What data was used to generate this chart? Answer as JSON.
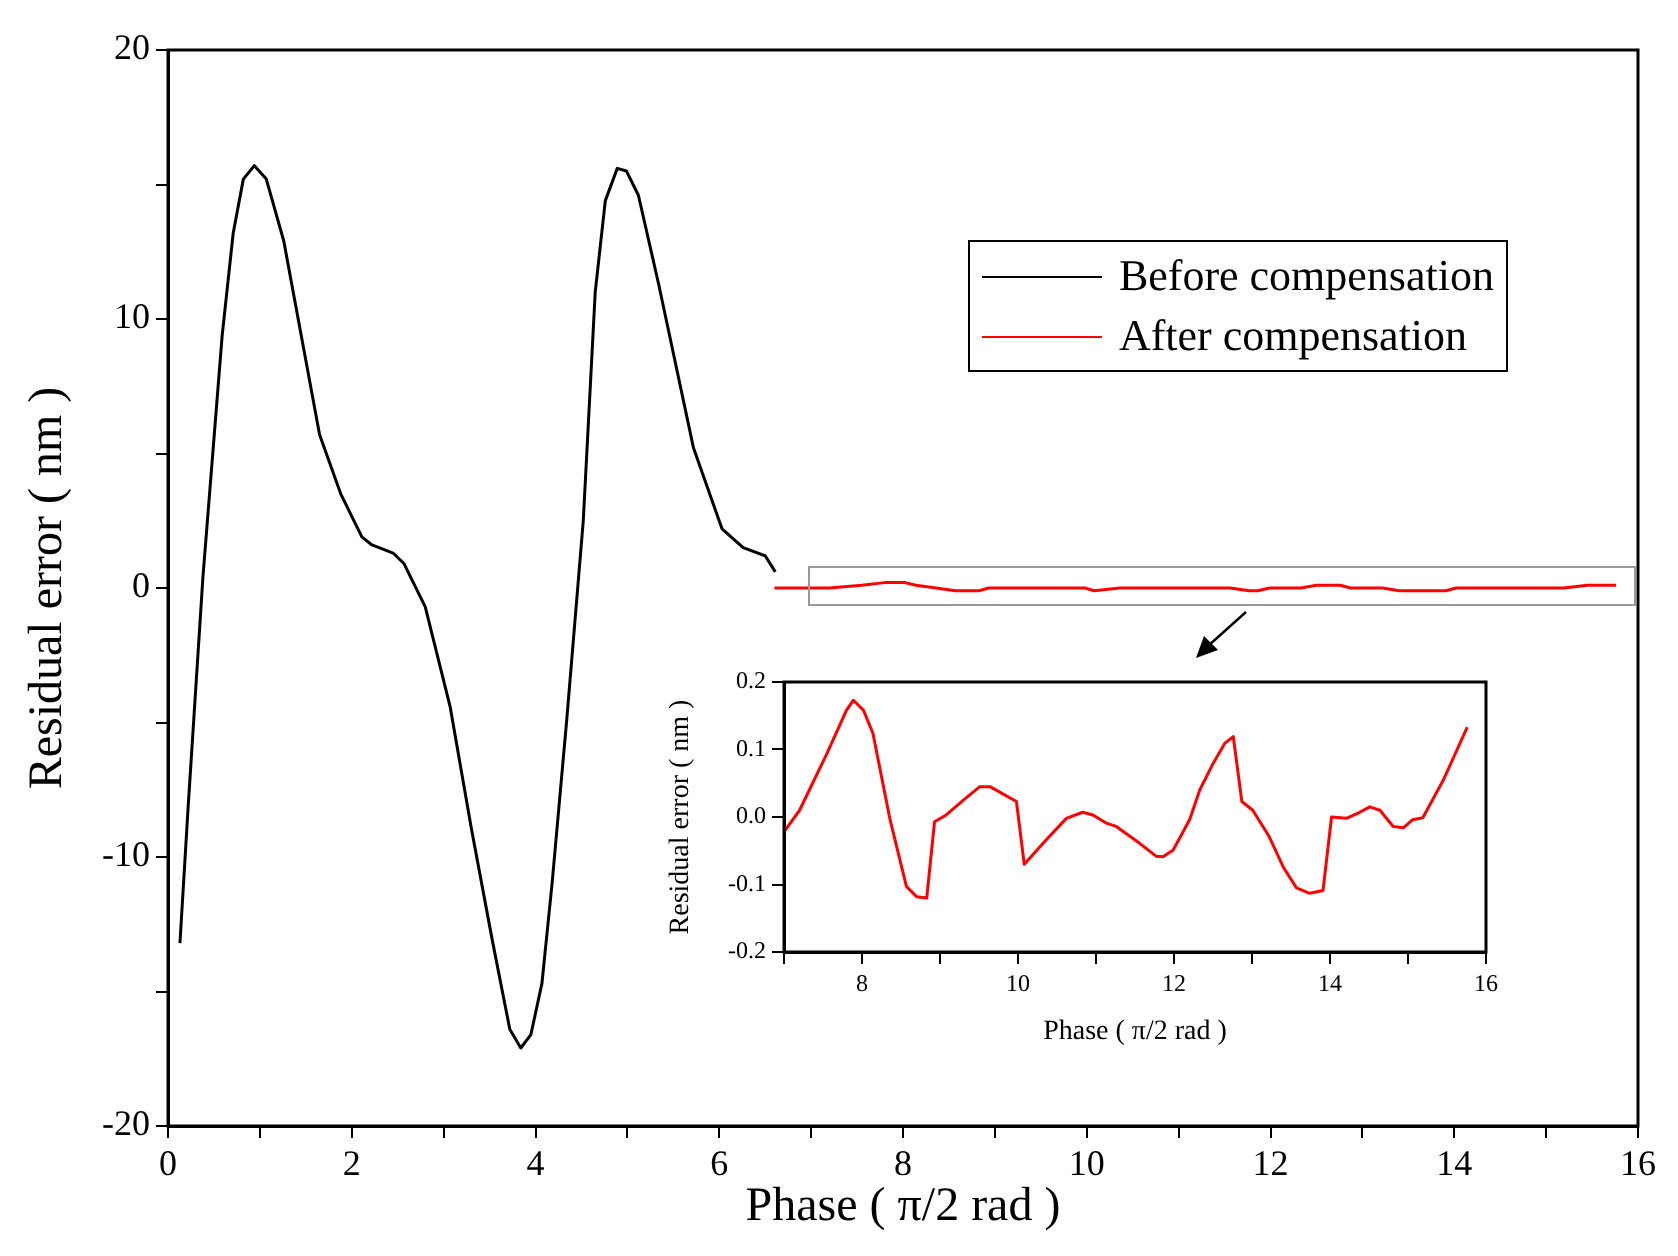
{
  "chart_data": [
    {
      "type": "line",
      "xlabel": "Phase ( π/2 rad )",
      "ylabel": "Residual error ( nm )",
      "xlim": [
        0,
        16
      ],
      "ylim": [
        -20,
        20
      ],
      "xticks": [
        0,
        {
          "value": 1,
          "label": null
        },
        2,
        {
          "value": 3,
          "label": null
        },
        4,
        {
          "value": 5,
          "label": null
        },
        6,
        {
          "value": 7,
          "label": null
        },
        8,
        {
          "value": 9,
          "label": null
        },
        10,
        {
          "value": 11,
          "label": null
        },
        12,
        {
          "value": 13,
          "label": null
        },
        14,
        {
          "value": 15,
          "label": null
        },
        16
      ],
      "yticks": [
        -20,
        {
          "value": -15,
          "label": null
        },
        -10,
        {
          "value": -5,
          "label": null
        },
        0,
        {
          "value": 5,
          "label": null
        },
        10,
        {
          "value": 15,
          "label": null
        },
        20
      ],
      "grid": false,
      "legend": "top right",
      "marker": "none",
      "line_style": "solid",
      "series": [
        {
          "name": "Before compensation",
          "color": "#000000",
          "x": [
            0.13,
            0.22,
            0.38,
            0.59,
            0.71,
            0.82,
            0.94,
            1.07,
            1.26,
            1.65,
            1.88,
            2.11,
            2.22,
            2.45,
            2.57,
            2.8,
            3.07,
            3.3,
            3.53,
            3.72,
            3.84,
            3.95,
            4.07,
            4.18,
            4.34,
            4.52,
            4.65,
            4.76,
            4.89,
            4.99,
            5.12,
            5.34,
            5.72,
            6.03,
            6.26,
            6.5,
            6.61
          ],
          "values": [
            -13.2,
            -8.1,
            0.4,
            9.4,
            13.2,
            15.2,
            15.7,
            15.2,
            12.9,
            5.7,
            3.5,
            1.9,
            1.6,
            1.3,
            0.9,
            -0.7,
            -4.4,
            -8.9,
            -13.1,
            -16.4,
            -17.1,
            -16.6,
            -14.7,
            -11,
            -4.9,
            2.5,
            11,
            14.4,
            15.6,
            15.5,
            14.6,
            11.3,
            5.2,
            2.2,
            1.5,
            1.2,
            0.6
          ]
        },
        {
          "name": "After compensation",
          "color": "#ff0000",
          "x": [
            6.6,
            7.0,
            7.2,
            7.55,
            7.8,
            7.89,
            8.02,
            8.14,
            8.36,
            8.57,
            8.7,
            8.83,
            8.93,
            9.08,
            9.3,
            9.51,
            9.64,
            9.98,
            10.08,
            10.36,
            10.62,
            10.83,
            10.96,
            11.13,
            11.26,
            11.56,
            11.77,
            11.86,
            11.99,
            12.2,
            12.33,
            12.5,
            12.65,
            12.76,
            12.87,
            13.01,
            13.22,
            13.4,
            13.57,
            13.74,
            13.91,
            14.02,
            14.21,
            14.38,
            14.51,
            14.64,
            14.81,
            14.94,
            15.06,
            15.19,
            15.45,
            15.76
          ],
          "values": [
            0,
            0,
            0,
            0.1,
            0.2,
            0.2,
            0.2,
            0.1,
            0,
            -0.1,
            -0.1,
            -0.1,
            0,
            0,
            0,
            0,
            0,
            0,
            -0.1,
            0,
            0,
            0,
            0,
            0,
            0,
            0,
            -0.1,
            -0.1,
            0,
            0,
            0,
            0.1,
            0.1,
            0.1,
            0,
            0,
            0,
            -0.1,
            -0.1,
            -0.1,
            -0.1,
            0,
            0,
            0,
            0,
            0,
            0,
            0,
            0,
            0,
            0.1,
            0.1
          ]
        }
      ]
    },
    {
      "type": "line",
      "xlabel": "Phase ( π/2 rad )",
      "ylabel": "Residual error ( nm )",
      "xlim": [
        7,
        16
      ],
      "ylim": [
        -0.2,
        0.2
      ],
      "xticks": [
        {
          "value": 7,
          "label": null
        },
        8,
        {
          "value": 9,
          "label": null
        },
        10,
        {
          "value": 11,
          "label": null
        },
        12,
        {
          "value": 13,
          "label": null
        },
        14,
        {
          "value": 15,
          "label": null
        },
        16
      ],
      "yticks": [
        -0.2,
        -0.1,
        {
          "value": 0,
          "label": "0.0"
        },
        0.1,
        0.2
      ],
      "grid": false,
      "legend": false,
      "marker": "none",
      "line_style": "solid",
      "series": [
        {
          "color": "#ff0000",
          "x": [
            7.0,
            7.2,
            7.55,
            7.8,
            7.89,
            8.02,
            8.14,
            8.36,
            8.57,
            8.7,
            8.83,
            8.93,
            9.08,
            9.3,
            9.51,
            9.64,
            9.98,
            10.08,
            10.36,
            10.62,
            10.83,
            10.96,
            11.13,
            11.26,
            11.56,
            11.77,
            11.86,
            11.99,
            12.2,
            12.33,
            12.5,
            12.65,
            12.76,
            12.87,
            13.01,
            13.22,
            13.4,
            13.57,
            13.74,
            13.91,
            14.02,
            14.21,
            14.38,
            14.51,
            14.64,
            14.81,
            14.94,
            15.06,
            15.19,
            15.45,
            15.76
          ],
          "values": [
            -0.022,
            0.01,
            0.094,
            0.158,
            0.173,
            0.158,
            0.124,
            -0.004,
            -0.103,
            -0.118,
            -0.12,
            -0.007,
            0.003,
            0.025,
            0.045,
            0.045,
            0.023,
            -0.07,
            -0.034,
            -0.002,
            0.007,
            0.003,
            -0.009,
            -0.014,
            -0.039,
            -0.058,
            -0.059,
            -0.049,
            -0.004,
            0.04,
            0.079,
            0.109,
            0.119,
            0.023,
            0.01,
            -0.029,
            -0.074,
            -0.105,
            -0.113,
            -0.109,
            0,
            -0.002,
            0.007,
            0.015,
            0.01,
            -0.014,
            -0.016,
            -0.004,
            -0.001,
            0.054,
            0.133
          ]
        }
      ]
    }
  ]
}
